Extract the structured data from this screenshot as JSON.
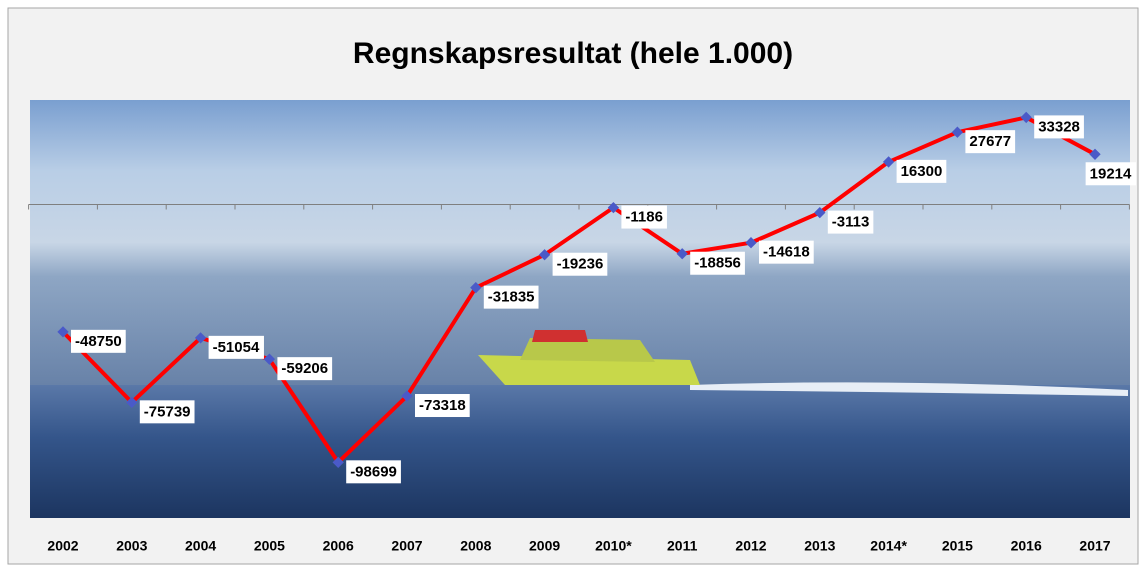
{
  "chart_data": {
    "type": "line",
    "title": "Regnskapsresultat (hele 1.000)",
    "categories": [
      "2002",
      "2003",
      "2004",
      "2005",
      "2006",
      "2007",
      "2008",
      "2009",
      "2010*",
      "2011",
      "2012",
      "2013",
      "2014*",
      "2015",
      "2016",
      "2017"
    ],
    "series": [
      {
        "color": "#ff0000",
        "marker_color": "#4a5ac8",
        "values": [
          -48750,
          -75739,
          -51054,
          -59206,
          -98699,
          -73318,
          -31835,
          -19236,
          -1186,
          -18856,
          -14618,
          -3113,
          16300,
          27677,
          33328,
          19214
        ]
      }
    ],
    "ylim": [
      -120000,
      40000
    ]
  }
}
